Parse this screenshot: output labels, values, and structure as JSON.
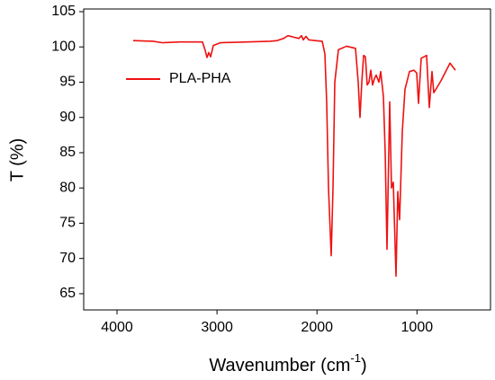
{
  "chart_data": {
    "type": "line",
    "xlabel": {
      "text": "Wavenumber (cm",
      "sup": "-1",
      "end": ")"
    },
    "ylabel": "T (%)",
    "x": [
      3838,
      3640,
      3550,
      3370,
      3145,
      3118,
      3100,
      3082,
      3064,
      3037,
      2965,
      2470,
      2398,
      2335,
      2290,
      2236,
      2182,
      2155,
      2137,
      2110,
      2083,
      2020,
      1948,
      1921,
      1903,
      1885,
      1858,
      1840,
      1822,
      1786,
      1705,
      1615,
      1588,
      1570,
      1552,
      1534,
      1516,
      1498,
      1480,
      1462,
      1444,
      1426,
      1408,
      1381,
      1363,
      1336,
      1318,
      1300,
      1273,
      1255,
      1237,
      1210,
      1192,
      1174,
      1147,
      1120,
      1075,
      1030,
      1003,
      985,
      958,
      904,
      877,
      850,
      832,
      760,
      670,
      643,
      616
    ],
    "series": [
      {
        "name": "PLA-PHA",
        "color": "#ee1111",
        "values": [
          100.9,
          100.8,
          100.6,
          100.7,
          100.7,
          99.5,
          98.5,
          99.2,
          98.6,
          100.2,
          100.6,
          100.8,
          100.9,
          101.2,
          101.6,
          101.4,
          101.2,
          101.6,
          101.0,
          101.5,
          101.0,
          100.9,
          100.8,
          99,
          92,
          80,
          70.4,
          80,
          95,
          99.6,
          100.1,
          99.8,
          95,
          90.0,
          95,
          98.8,
          98.6,
          94.6,
          95,
          96.7,
          94.6,
          95.5,
          96,
          95.0,
          96.5,
          93,
          85,
          71.3,
          92.2,
          80,
          80.8,
          67.5,
          79.5,
          75.5,
          88,
          94,
          96.5,
          96.7,
          96.3,
          92,
          98.4,
          98.8,
          91.4,
          96.5,
          93.5,
          95.2,
          97.7,
          97.2,
          96.7
        ]
      }
    ],
    "xlim": [
      4333,
      265
    ],
    "xticks": [
      4000,
      3000,
      2000,
      1000
    ],
    "ylim": [
      62.7,
      105.38
    ],
    "yticks": [
      65,
      70,
      75,
      80,
      85,
      90,
      95,
      100,
      105
    ],
    "legend": "upper left",
    "grid": false
  }
}
